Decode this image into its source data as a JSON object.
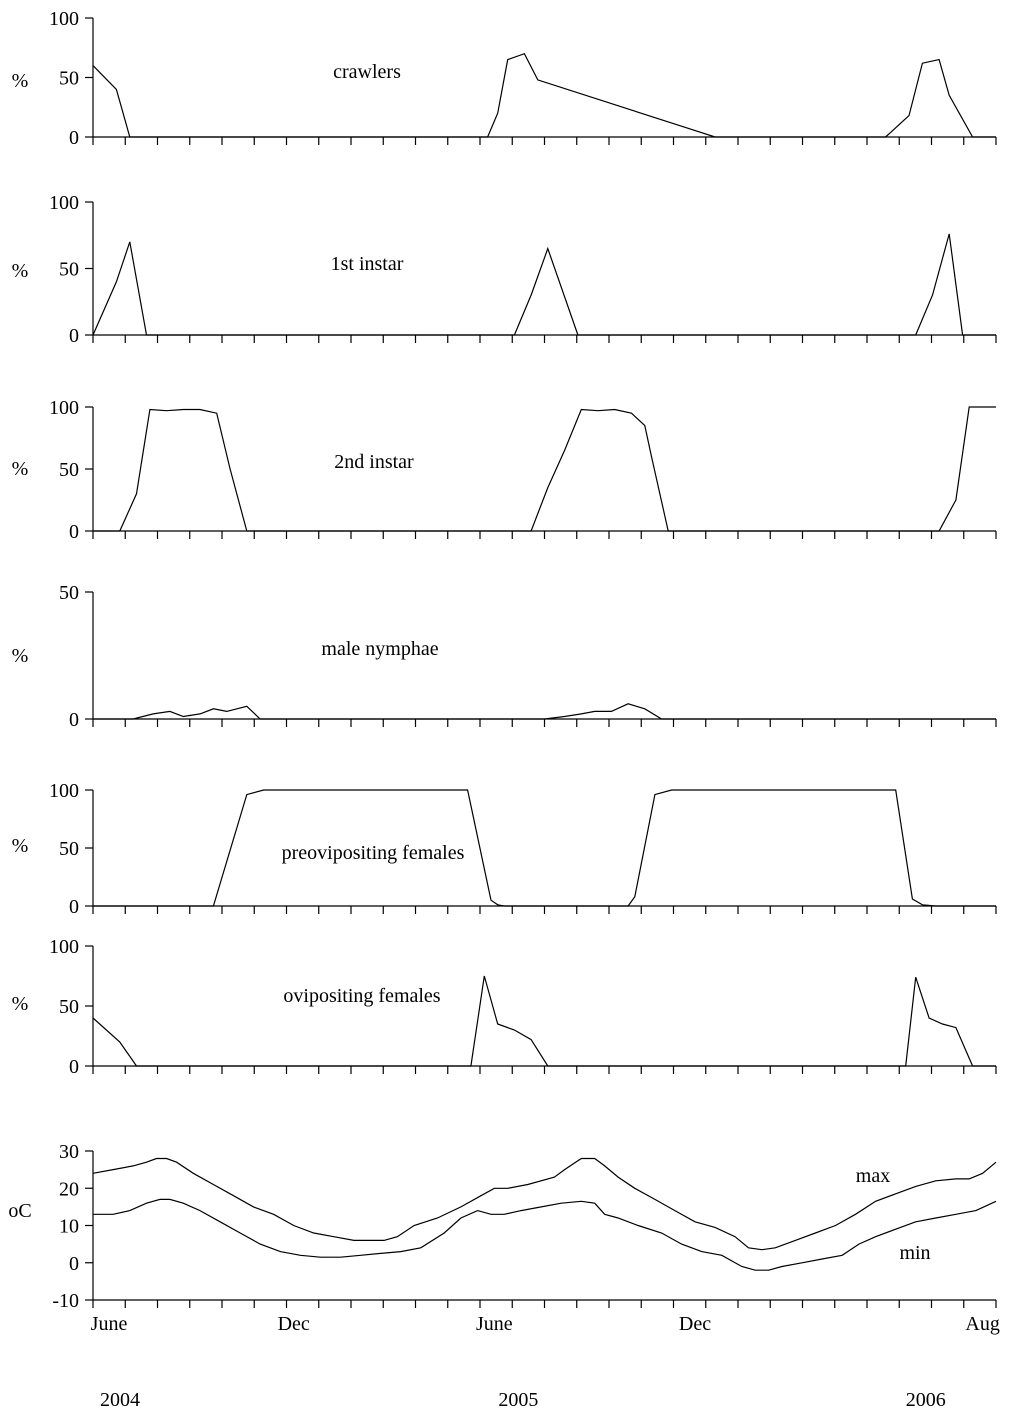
{
  "chart_data": [
    {
      "type": "line",
      "ylabel": "%",
      "yticks": [
        0,
        50,
        100
      ],
      "ylim": [
        0,
        100
      ],
      "series": [
        {
          "name": "crawlers",
          "x": [
            0,
            0.7,
            1.1,
            5.6,
            11.2,
            11.8,
            12.1,
            12.4,
            12.9,
            13.3,
            18.6,
            23.2,
            23.7,
            24.4,
            24.8,
            25.3,
            25.6,
            26.3,
            27
          ],
          "y": [
            60,
            40,
            0,
            0,
            0,
            0,
            20,
            65,
            70,
            48,
            0,
            0,
            0,
            18,
            62,
            65,
            35,
            0,
            0
          ]
        }
      ]
    },
    {
      "type": "line",
      "ylabel": "%",
      "yticks": [
        0,
        50,
        100
      ],
      "ylim": [
        0,
        100
      ],
      "series": [
        {
          "name": "1st instar",
          "x": [
            0,
            0.7,
            1.1,
            1.6,
            6,
            12.6,
            13.1,
            13.6,
            14.5,
            20,
            24.6,
            25.1,
            25.6,
            26,
            27
          ],
          "y": [
            0,
            40,
            70,
            0,
            0,
            0,
            30,
            65,
            0,
            0,
            0,
            30,
            76,
            0,
            0
          ]
        }
      ]
    },
    {
      "type": "line",
      "ylabel": "%",
      "yticks": [
        0,
        50,
        100
      ],
      "ylim": [
        0,
        100
      ],
      "series": [
        {
          "name": "2nd instar",
          "x": [
            0,
            0.8,
            1.3,
            1.7,
            2.2,
            2.7,
            3.2,
            3.7,
            4.1,
            4.6,
            8,
            13.1,
            13.6,
            14.1,
            14.6,
            15.1,
            15.6,
            16.1,
            16.5,
            16.7,
            17.2,
            22,
            25.3,
            25.8,
            26.2,
            27
          ],
          "y": [
            0,
            0,
            30,
            98,
            97,
            98,
            98,
            95,
            50,
            0,
            0,
            0,
            35,
            65,
            98,
            97,
            98,
            95,
            85,
            60,
            0,
            0,
            0,
            25,
            100,
            100
          ]
        }
      ]
    },
    {
      "type": "line",
      "ylabel": "%",
      "yticks": [
        0,
        50
      ],
      "ylim": [
        0,
        50
      ],
      "series": [
        {
          "name": "male nymphae",
          "x": [
            0,
            1.2,
            1.8,
            2.3,
            2.7,
            3.2,
            3.6,
            4,
            4.6,
            5,
            8,
            13.5,
            14.1,
            14.6,
            15,
            15.5,
            16,
            16.5,
            17,
            22,
            27
          ],
          "y": [
            0,
            0,
            2,
            3,
            1,
            2,
            4,
            3,
            5,
            0,
            0,
            0,
            1,
            2,
            3,
            3,
            6,
            4,
            0,
            0,
            0
          ]
        }
      ]
    },
    {
      "type": "line",
      "ylabel": "%",
      "yticks": [
        0,
        50,
        100
      ],
      "ylim": [
        0,
        100
      ],
      "series": [
        {
          "name": "preovipositing females",
          "x": [
            0,
            3.6,
            4.6,
            5.1,
            8,
            11.2,
            11.9,
            12.1,
            12.3,
            14,
            16,
            16.2,
            16.8,
            17.3,
            20,
            24,
            24.5,
            24.8,
            25.2,
            27
          ],
          "y": [
            0,
            0,
            96,
            100,
            100,
            100,
            5,
            1,
            0,
            0,
            0,
            8,
            96,
            100,
            100,
            100,
            6,
            1,
            0,
            0
          ]
        }
      ]
    },
    {
      "type": "line",
      "ylabel": "%",
      "yticks": [
        0,
        50,
        100
      ],
      "ylim": [
        0,
        100
      ],
      "series": [
        {
          "name": "ovipositing females",
          "x": [
            0,
            0.8,
            1.3,
            6,
            11.3,
            11.7,
            12.1,
            12.6,
            13.1,
            13.6,
            20,
            24.3,
            24.6,
            25,
            25.4,
            25.8,
            26.3,
            27
          ],
          "y": [
            40,
            20,
            0,
            0,
            0,
            75,
            35,
            30,
            22,
            0,
            0,
            0,
            74,
            40,
            35,
            32,
            0,
            0
          ]
        }
      ]
    },
    {
      "type": "line",
      "ylabel": "oC",
      "yticks": [
        30,
        20,
        10,
        0,
        -10
      ],
      "ylim": [
        -10,
        30
      ],
      "xticklabels": [
        {
          "x": 0,
          "label": "June"
        },
        {
          "x": 6,
          "label": "Dec"
        },
        {
          "x": 12,
          "label": "June"
        },
        {
          "x": 18,
          "label": "Dec"
        },
        {
          "x": 26.6,
          "label": "Aug"
        }
      ],
      "years": [
        {
          "x": 0,
          "label": "2004"
        },
        {
          "x": 12,
          "label": "2005"
        },
        {
          "x": 24.9,
          "label": "2006"
        }
      ],
      "series": [
        {
          "name": "max",
          "x": [
            0,
            0.6,
            1.2,
            1.6,
            1.9,
            2.2,
            2.5,
            3,
            3.6,
            4.2,
            4.8,
            5.4,
            6,
            6.6,
            7.2,
            7.8,
            8.3,
            8.7,
            9.1,
            9.6,
            10.3,
            11,
            11.6,
            12,
            12.4,
            13,
            13.8,
            14.1,
            14.6,
            15,
            15.3,
            15.7,
            16.2,
            16.8,
            17.4,
            18,
            18.6,
            19.2,
            19.6,
            20,
            20.4,
            21,
            21.6,
            22.2,
            22.8,
            23.4,
            24,
            24.6,
            25.2,
            25.8,
            26.2,
            26.6,
            27
          ],
          "y": [
            24,
            25,
            26,
            27,
            28,
            28,
            27,
            24,
            21,
            18,
            15,
            13,
            10,
            8,
            7,
            6,
            6,
            6,
            7,
            10,
            12,
            15,
            18,
            20,
            20,
            21,
            23,
            25,
            28,
            28,
            26,
            23,
            20,
            17,
            14,
            11,
            9.5,
            7,
            4,
            3.5,
            4,
            6,
            8,
            10,
            13,
            16.5,
            18.5,
            20.5,
            22,
            22.5,
            22.5,
            24,
            27
          ]
        },
        {
          "name": "min",
          "x": [
            0,
            0.6,
            1.1,
            1.6,
            2,
            2.3,
            2.7,
            3.2,
            3.8,
            4.4,
            5,
            5.6,
            6.2,
            6.8,
            7.4,
            8,
            8.6,
            9.2,
            9.8,
            10.5,
            11,
            11.5,
            11.9,
            12.3,
            12.8,
            13.4,
            14,
            14.6,
            15,
            15.3,
            15.7,
            16.3,
            17,
            17.6,
            18.2,
            18.8,
            19.4,
            19.8,
            20.2,
            20.6,
            21.2,
            21.8,
            22.4,
            22.9,
            23.4,
            24,
            24.6,
            25.2,
            25.8,
            26.4,
            27
          ],
          "y": [
            13,
            13,
            14,
            16,
            17,
            17,
            16,
            14,
            11,
            8,
            5,
            3,
            2,
            1.5,
            1.5,
            2,
            2.5,
            3,
            4,
            8,
            12,
            14,
            13,
            13,
            14,
            15,
            16,
            16.5,
            16,
            13,
            12,
            10,
            8,
            5,
            3,
            2,
            -1,
            -2,
            -2,
            -1,
            0,
            1,
            2,
            5,
            7,
            9,
            11,
            12,
            13,
            14,
            16.5
          ]
        }
      ]
    }
  ]
}
